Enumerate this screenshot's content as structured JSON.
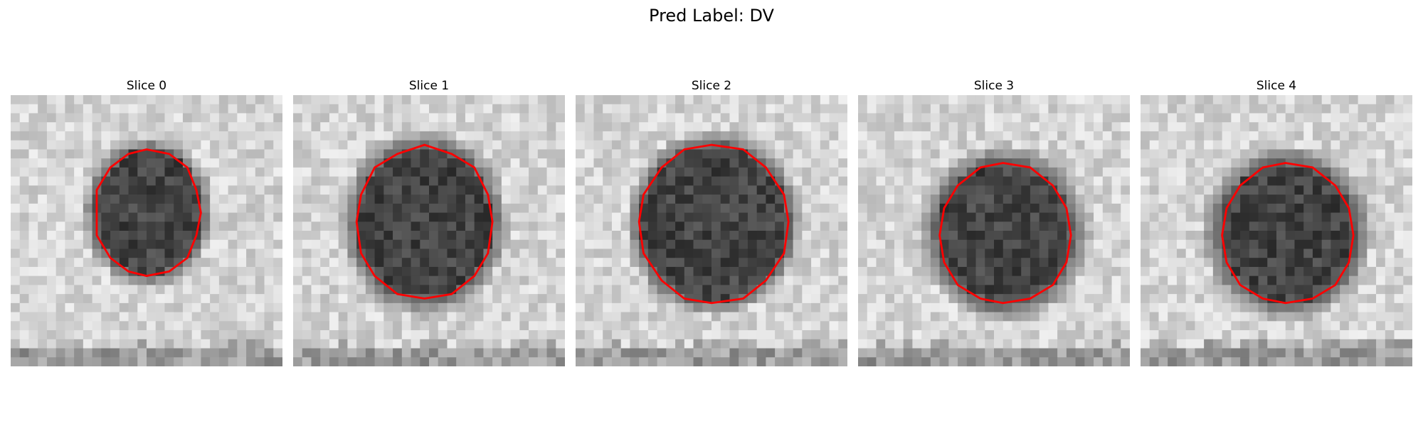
{
  "figure": {
    "title": "Pred Label: DV"
  },
  "contour_color": "#ff0000",
  "panels": [
    {
      "title": "Slice 0",
      "seed": 11,
      "center": [
        15.2,
        13.0
      ],
      "rx": 5.8,
      "ry": 6.8,
      "halo": 1.25,
      "dark_bottom": true
    },
    {
      "title": "Slice 1",
      "seed": 23,
      "center": [
        14.5,
        14.2
      ],
      "rx": 7.4,
      "ry": 8.3,
      "halo": 1.25,
      "dark_bottom": true
    },
    {
      "title": "Slice 2",
      "seed": 37,
      "center": [
        15.2,
        14.2
      ],
      "rx": 8.1,
      "ry": 8.6,
      "halo": 1.2,
      "dark_bottom": true
    },
    {
      "title": "Slice 3",
      "seed": 51,
      "center": [
        16.2,
        15.3
      ],
      "rx": 7.3,
      "ry": 7.6,
      "halo": 1.3,
      "dark_bottom": true
    },
    {
      "title": "Slice 4",
      "seed": 67,
      "center": [
        16.2,
        15.3
      ],
      "rx": 7.3,
      "ry": 7.6,
      "halo": 1.3,
      "dark_bottom": true
    }
  ]
}
